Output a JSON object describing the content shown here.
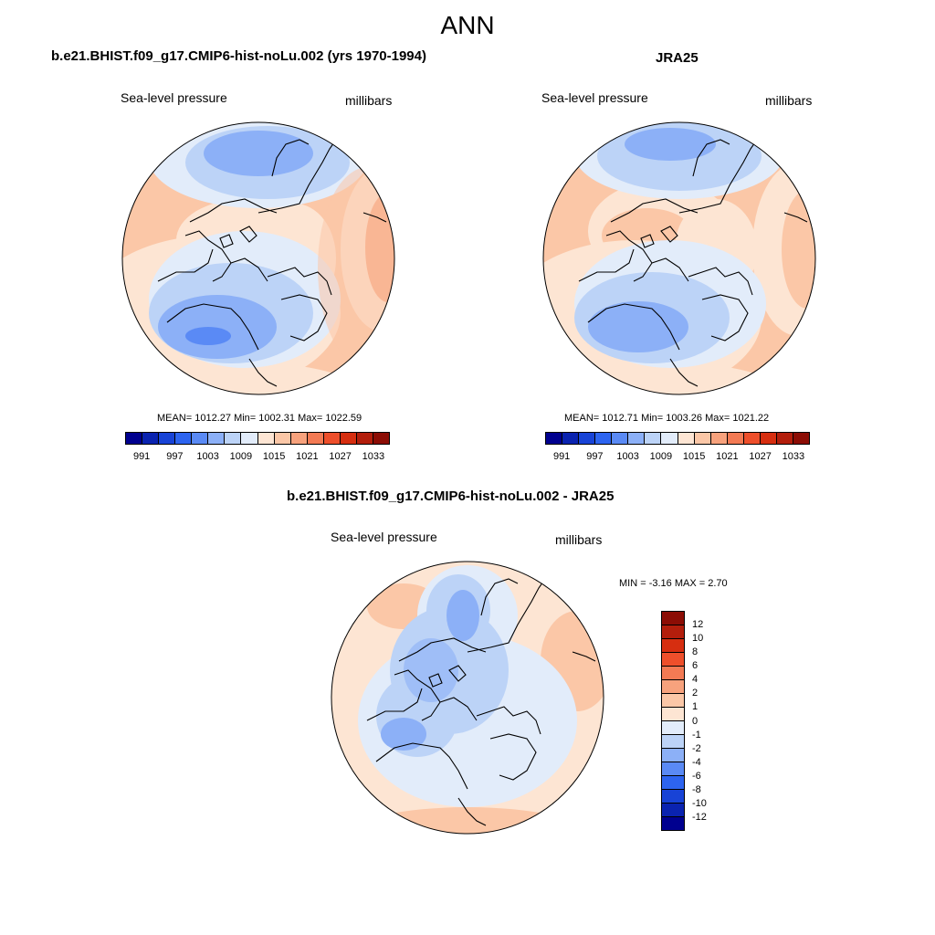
{
  "figure": {
    "title": "ANN"
  },
  "panels": {
    "model": {
      "title": "b.e21.BHIST.f09_g17.CMIP6-hist-noLu.002 (yrs 1970-1994)",
      "variable": "Sea-level pressure",
      "units": "millibars",
      "stats": "MEAN= 1012.27  Min= 1002.31  Max= 1022.59"
    },
    "obs": {
      "title": "JRA25",
      "variable": "Sea-level pressure",
      "units": "millibars",
      "stats": "MEAN= 1012.71  Min= 1003.26  Max= 1021.22"
    },
    "diff": {
      "title": "b.e21.BHIST.f09_g17.CMIP6-hist-noLu.002 - JRA25",
      "variable": "Sea-level pressure",
      "units": "millibars",
      "stats": "MIN =  -3.16 MAX =   2.70"
    }
  },
  "colorbars": {
    "abs": {
      "labels": [
        "991",
        "997",
        "1003",
        "1009",
        "1015",
        "1021",
        "1027",
        "1033"
      ],
      "colors": [
        "#00008f",
        "#0a23b0",
        "#1843d6",
        "#2d64f0",
        "#5a8af5",
        "#8cb0f7",
        "#bcd3f7",
        "#e2ecfa",
        "#fde5d3",
        "#fbc7a7",
        "#f7a27d",
        "#f37a54",
        "#ee4f2b",
        "#d62e10",
        "#b31e0c",
        "#8c0d05"
      ]
    },
    "diff": {
      "labels": [
        "12",
        "10",
        "8",
        "6",
        "4",
        "2",
        "1",
        "0",
        "-1",
        "-2",
        "-4",
        "-6",
        "-8",
        "-10",
        "-12"
      ],
      "colors": [
        "#8c0d05",
        "#b31e0c",
        "#d62e10",
        "#ee4f2b",
        "#f37a54",
        "#f7a27d",
        "#fbc7a7",
        "#fde5d3",
        "#e2ecfa",
        "#bcd3f7",
        "#8cb0f7",
        "#5a8af5",
        "#2d64f0",
        "#1843d6",
        "#0a23b0",
        "#00008f"
      ]
    }
  }
}
